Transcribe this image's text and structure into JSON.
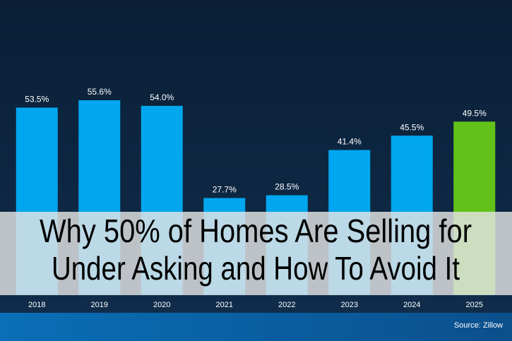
{
  "chart_data": {
    "type": "bar",
    "categories": [
      "2018",
      "2019",
      "2020",
      "2021",
      "2022",
      "2023",
      "2024",
      "2025"
    ],
    "values": [
      53.5,
      55.6,
      54.0,
      27.7,
      28.5,
      41.4,
      45.5,
      49.5
    ],
    "value_labels": [
      "53.5%",
      "55.6%",
      "54.0%",
      "27.7%",
      "28.5%",
      "41.4%",
      "45.5%",
      "49.5%"
    ],
    "colors": [
      "#00a6ee",
      "#00a6ee",
      "#00a6ee",
      "#00a6ee",
      "#00a6ee",
      "#00a6ee",
      "#00a6ee",
      "#62c21a"
    ],
    "ylim": [
      0,
      84
    ],
    "source": "Source: Zillow"
  },
  "overlay": {
    "title_lines": [
      "Why 50% of Homes Are Selling for",
      "Under Asking and How To Avoid It"
    ]
  }
}
